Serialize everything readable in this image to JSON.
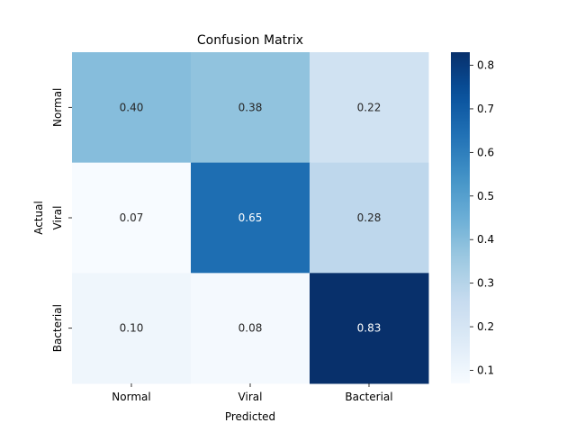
{
  "chart_data": {
    "type": "heatmap",
    "title": "Confusion Matrix",
    "xlabel": "Predicted",
    "ylabel": "Actual",
    "x_categories": [
      "Normal",
      "Viral",
      "Bacterial"
    ],
    "y_categories": [
      "Normal",
      "Viral",
      "Bacterial"
    ],
    "values": [
      [
        0.4,
        0.38,
        0.22
      ],
      [
        0.07,
        0.65,
        0.28
      ],
      [
        0.1,
        0.08,
        0.83
      ]
    ],
    "cell_labels": [
      [
        "0.40",
        "0.38",
        "0.22"
      ],
      [
        "0.07",
        "0.65",
        "0.28"
      ],
      [
        "0.10",
        "0.08",
        "0.83"
      ]
    ],
    "colormap": "Blues",
    "vmin": 0.07,
    "vmax": 0.83,
    "colorbar_ticks": [
      0.1,
      0.2,
      0.3,
      0.4,
      0.5,
      0.6,
      0.7,
      0.8
    ],
    "colorbar_tick_labels": [
      "0.1",
      "0.2",
      "0.3",
      "0.4",
      "0.5",
      "0.6",
      "0.7",
      "0.8"
    ],
    "grid": false
  }
}
